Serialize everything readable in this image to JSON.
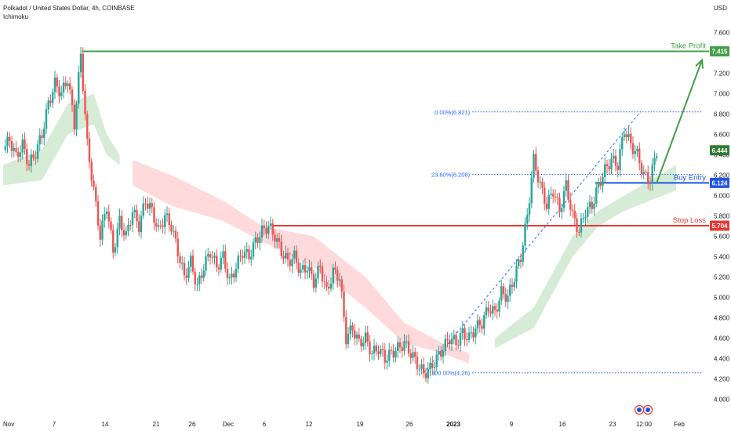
{
  "header": {
    "title": "Polkadot / United States Dollar, 4h, COINBASE",
    "indicator": "Ichimoku"
  },
  "colors": {
    "up": "#26a69a",
    "down": "#ef5350",
    "take_profit": "#43a047",
    "stop_loss": "#e53935",
    "entry": "#1e53e5",
    "fib": "#2962ff",
    "cloud_green": "#c8e6c9",
    "cloud_red": "#ffcdd2",
    "current_price": "#2e7d32"
  },
  "chart_data": {
    "type": "candlestick",
    "symbol": "Polkadot / United States Dollar",
    "timeframe": "4h",
    "exchange": "COINBASE",
    "indicator": "Ichimoku",
    "y_axis": {
      "unit_label": "USD",
      "range": [
        4.0,
        7.7
      ],
      "ticks": [
        "7.600",
        "7.400",
        "7.200",
        "7.000",
        "6.800",
        "6.600",
        "6.400",
        "6.200",
        "6.000",
        "5.800",
        "5.600",
        "5.400",
        "5.200",
        "5.000",
        "4.800",
        "4.600",
        "4.400",
        "4.200",
        "4.000"
      ]
    },
    "x_axis": {
      "ticks": [
        "Nov",
        "7",
        "14",
        "21",
        "26",
        "Dec",
        "6",
        "12",
        "19",
        "26",
        "2023",
        "9",
        "16",
        "23",
        "12:00",
        "Feb"
      ]
    },
    "price_path": [
      {
        "t": 0,
        "p": 6.45
      },
      {
        "t": 1,
        "p": 6.55
      },
      {
        "t": 2,
        "p": 6.38
      },
      {
        "t": 3,
        "p": 6.5
      },
      {
        "t": 4,
        "p": 6.3
      },
      {
        "t": 5,
        "p": 6.42
      },
      {
        "t": 6,
        "p": 6.6
      },
      {
        "t": 7,
        "p": 6.9
      },
      {
        "t": 8,
        "p": 7.1
      },
      {
        "t": 9,
        "p": 7.0
      },
      {
        "t": 10,
        "p": 7.15
      },
      {
        "t": 11,
        "p": 6.7
      },
      {
        "t": 12,
        "p": 7.38
      },
      {
        "t": 13,
        "p": 6.5
      },
      {
        "t": 14,
        "p": 6.05
      },
      {
        "t": 15,
        "p": 5.6
      },
      {
        "t": 16,
        "p": 5.9
      },
      {
        "t": 17,
        "p": 5.45
      },
      {
        "t": 18,
        "p": 5.75
      },
      {
        "t": 19,
        "p": 5.6
      },
      {
        "t": 20,
        "p": 5.85
      },
      {
        "t": 21,
        "p": 5.7
      },
      {
        "t": 22,
        "p": 5.95
      },
      {
        "t": 23,
        "p": 5.85
      },
      {
        "t": 24,
        "p": 5.65
      },
      {
        "t": 25,
        "p": 5.8
      },
      {
        "t": 26,
        "p": 5.7
      },
      {
        "t": 27,
        "p": 5.45
      },
      {
        "t": 28,
        "p": 5.2
      },
      {
        "t": 29,
        "p": 5.35
      },
      {
        "t": 30,
        "p": 5.1
      },
      {
        "t": 31,
        "p": 5.3
      },
      {
        "t": 32,
        "p": 5.45
      },
      {
        "t": 33,
        "p": 5.3
      },
      {
        "t": 34,
        "p": 5.4
      },
      {
        "t": 35,
        "p": 5.15
      },
      {
        "t": 36,
        "p": 5.3
      },
      {
        "t": 37,
        "p": 5.45
      },
      {
        "t": 38,
        "p": 5.4
      },
      {
        "t": 39,
        "p": 5.55
      },
      {
        "t": 40,
        "p": 5.65
      },
      {
        "t": 41,
        "p": 5.7
      },
      {
        "t": 42,
        "p": 5.6
      },
      {
        "t": 43,
        "p": 5.45
      },
      {
        "t": 44,
        "p": 5.35
      },
      {
        "t": 45,
        "p": 5.4
      },
      {
        "t": 46,
        "p": 5.25
      },
      {
        "t": 47,
        "p": 5.3
      },
      {
        "t": 48,
        "p": 5.15
      },
      {
        "t": 49,
        "p": 5.3
      },
      {
        "t": 50,
        "p": 5.05
      },
      {
        "t": 51,
        "p": 5.25
      },
      {
        "t": 52,
        "p": 5.2
      },
      {
        "t": 53,
        "p": 4.6
      },
      {
        "t": 54,
        "p": 4.7
      },
      {
        "t": 55,
        "p": 4.55
      },
      {
        "t": 56,
        "p": 4.6
      },
      {
        "t": 57,
        "p": 4.45
      },
      {
        "t": 58,
        "p": 4.5
      },
      {
        "t": 59,
        "p": 4.4
      },
      {
        "t": 60,
        "p": 4.45
      },
      {
        "t": 61,
        "p": 4.5
      },
      {
        "t": 62,
        "p": 4.55
      },
      {
        "t": 63,
        "p": 4.45
      },
      {
        "t": 64,
        "p": 4.35
      },
      {
        "t": 65,
        "p": 4.25
      },
      {
        "t": 66,
        "p": 4.3
      },
      {
        "t": 67,
        "p": 4.4
      },
      {
        "t": 68,
        "p": 4.5
      },
      {
        "t": 69,
        "p": 4.6
      },
      {
        "t": 70,
        "p": 4.55
      },
      {
        "t": 71,
        "p": 4.65
      },
      {
        "t": 72,
        "p": 4.6
      },
      {
        "t": 73,
        "p": 4.7
      },
      {
        "t": 74,
        "p": 4.75
      },
      {
        "t": 75,
        "p": 4.9
      },
      {
        "t": 76,
        "p": 4.85
      },
      {
        "t": 77,
        "p": 5.05
      },
      {
        "t": 78,
        "p": 5.0
      },
      {
        "t": 79,
        "p": 5.2
      },
      {
        "t": 80,
        "p": 5.4
      },
      {
        "t": 81,
        "p": 5.8
      },
      {
        "t": 82,
        "p": 6.35
      },
      {
        "t": 83,
        "p": 6.1
      },
      {
        "t": 84,
        "p": 5.9
      },
      {
        "t": 85,
        "p": 6.05
      },
      {
        "t": 86,
        "p": 5.85
      },
      {
        "t": 87,
        "p": 6.1
      },
      {
        "t": 88,
        "p": 5.8
      },
      {
        "t": 89,
        "p": 5.65
      },
      {
        "t": 90,
        "p": 5.85
      },
      {
        "t": 91,
        "p": 5.9
      },
      {
        "t": 92,
        "p": 6.1
      },
      {
        "t": 93,
        "p": 6.25
      },
      {
        "t": 94,
        "p": 6.35
      },
      {
        "t": 95,
        "p": 6.3
      },
      {
        "t": 96,
        "p": 6.65
      },
      {
        "t": 97,
        "p": 6.5
      },
      {
        "t": 98,
        "p": 6.4
      },
      {
        "t": 99,
        "p": 6.2
      },
      {
        "t": 100,
        "p": 6.15
      },
      {
        "t": 101,
        "p": 6.444
      }
    ],
    "levels": [
      {
        "name": "Take Profit",
        "value": 7.415,
        "badge": "7.415"
      },
      {
        "name": "Buy Entry",
        "value": 6.124,
        "badge": "6.124"
      },
      {
        "name": "Stop Loss",
        "value": 5.704,
        "badge": "5.704"
      }
    ],
    "current_price": {
      "value": 6.444,
      "badge": "6.444"
    },
    "fibonacci": [
      {
        "label": "0.00%(6.821)",
        "value": 6.821
      },
      {
        "label": "23.60%(6.208)",
        "value": 6.208
      },
      {
        "label": "100.00%(4.26)",
        "value": 4.26
      }
    ],
    "ichimoku_cloud_green": [
      {
        "t": 0,
        "lo": 6.1,
        "hi": 6.3
      },
      {
        "t": 6,
        "lo": 6.15,
        "hi": 6.45
      },
      {
        "t": 10,
        "lo": 6.6,
        "hi": 6.9
      },
      {
        "t": 14,
        "lo": 6.7,
        "hi": 7.0
      },
      {
        "t": 16,
        "lo": 6.4,
        "hi": 6.6
      },
      {
        "t": 18,
        "lo": 6.3,
        "hi": 6.4
      }
    ],
    "ichimoku_cloud_red": [
      {
        "t": 20,
        "lo": 6.1,
        "hi": 6.35
      },
      {
        "t": 26,
        "lo": 5.9,
        "hi": 6.2
      },
      {
        "t": 34,
        "lo": 5.75,
        "hi": 5.95
      },
      {
        "t": 40,
        "lo": 5.55,
        "hi": 5.7
      },
      {
        "t": 48,
        "lo": 5.3,
        "hi": 5.6
      },
      {
        "t": 56,
        "lo": 4.9,
        "hi": 5.2
      },
      {
        "t": 62,
        "lo": 4.55,
        "hi": 4.75
      },
      {
        "t": 68,
        "lo": 4.45,
        "hi": 4.55
      },
      {
        "t": 72,
        "lo": 4.35,
        "hi": 4.45
      }
    ],
    "ichimoku_cloud_green_late": [
      {
        "t": 76,
        "lo": 4.5,
        "hi": 4.6
      },
      {
        "t": 82,
        "lo": 4.7,
        "hi": 4.9
      },
      {
        "t": 88,
        "lo": 5.4,
        "hi": 5.6
      },
      {
        "t": 92,
        "lo": 5.7,
        "hi": 5.85
      },
      {
        "t": 96,
        "lo": 5.85,
        "hi": 6.0
      },
      {
        "t": 100,
        "lo": 5.95,
        "hi": 6.15
      },
      {
        "t": 104,
        "lo": 6.05,
        "hi": 6.3
      }
    ],
    "take_profit_arrow": {
      "from": {
        "t": 101,
        "p": 6.124
      },
      "to": {
        "t": 108,
        "p": 7.33
      }
    }
  }
}
